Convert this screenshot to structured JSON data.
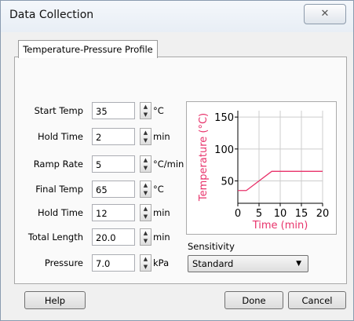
{
  "window_title": "Data Collection",
  "tab": "Temperature-Pressure Profile",
  "fields": [
    {
      "label": "Start Temp",
      "value": "35",
      "unit": "°C"
    },
    {
      "label": "Hold Time",
      "value": "2",
      "unit": "min"
    },
    {
      "label": "Ramp Rate",
      "value": "5",
      "unit": "°C/min"
    },
    {
      "label": "Final Temp",
      "value": "65",
      "unit": "°C"
    },
    {
      "label": "Hold Time",
      "value": "12",
      "unit": "min"
    },
    {
      "label": "Total Length",
      "value": "20.0",
      "unit": "min"
    },
    {
      "label": "Pressure",
      "value": "7.0",
      "unit": "kPa"
    }
  ],
  "chart_data": {
    "type": "line",
    "xlabel": "Time (min)",
    "ylabel": "Temperature (°C)",
    "x": [
      0,
      2,
      8,
      20
    ],
    "series": [
      {
        "values": [
          35,
          35,
          65,
          65
        ],
        "color": "#e8336b"
      }
    ],
    "xlim": [
      0,
      20
    ],
    "ylim": [
      15,
      160
    ],
    "xticks": [
      0,
      5,
      10,
      15,
      20
    ],
    "yticks": [
      50,
      100,
      150
    ],
    "grid": true
  },
  "sensitivity": {
    "label": "Sensitivity",
    "selected": "Standard"
  },
  "buttons": {
    "help": "Help",
    "done": "Done",
    "cancel": "Cancel"
  }
}
